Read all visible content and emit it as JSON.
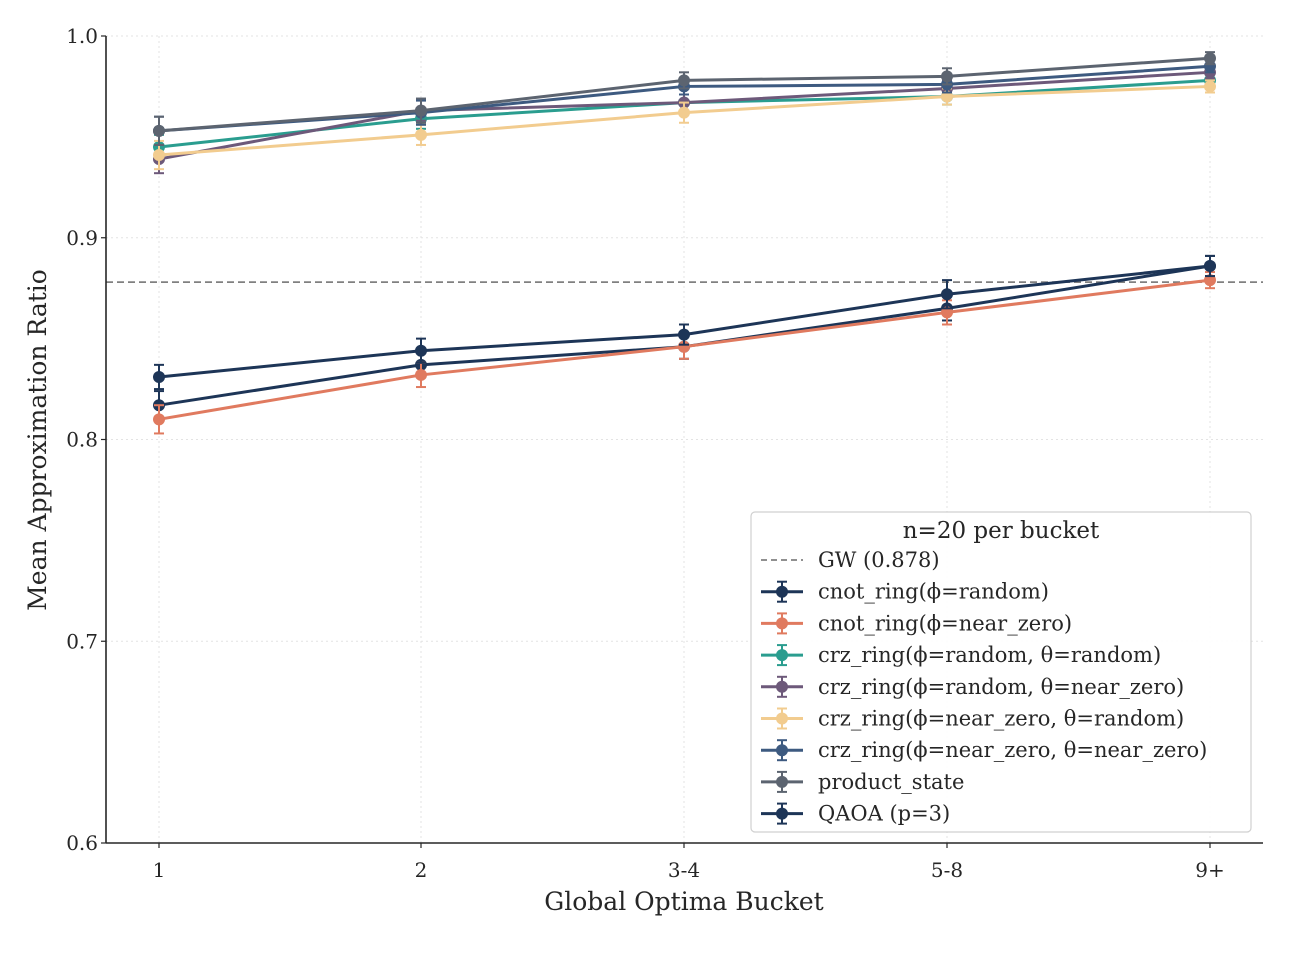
{
  "chart_data": {
    "type": "line",
    "categories": [
      "1",
      "2",
      "3-4",
      "5-8",
      "9+"
    ],
    "xlabel": "Global Optima Bucket",
    "ylabel": "Mean Approximation Ratio",
    "ylim": [
      0.6,
      1.0
    ],
    "yticks": [
      "0.6",
      "0.7",
      "0.8",
      "0.9",
      "1.0"
    ],
    "grid": true,
    "legend": {
      "title": "n=20 per bucket",
      "placement": "lower-right"
    },
    "reference_line": {
      "label": "GW (0.878)",
      "value": 0.878,
      "color": "#808080",
      "style": "dashed"
    },
    "series": [
      {
        "name": "cnot_ring(ϕ=random)",
        "color": "#1d3557",
        "values": [
          0.817,
          0.837,
          0.846,
          0.865,
          0.886
        ],
        "errors": [
          0.007,
          0.006,
          0.006,
          0.006,
          0.005
        ]
      },
      {
        "name": "cnot_ring(ϕ=near_zero)",
        "color": "#e07a5f",
        "values": [
          0.81,
          0.832,
          0.846,
          0.863,
          0.879
        ],
        "errors": [
          0.007,
          0.006,
          0.006,
          0.006,
          0.004
        ]
      },
      {
        "name": "crz_ring(ϕ=random, θ=random)",
        "color": "#2a9d8f",
        "values": [
          0.945,
          0.959,
          0.967,
          0.97,
          0.978
        ],
        "errors": [
          0.006,
          0.005,
          0.004,
          0.004,
          0.003
        ]
      },
      {
        "name": "crz_ring(ϕ=random, θ=near_zero)",
        "color": "#6d597a",
        "values": [
          0.939,
          0.963,
          0.967,
          0.974,
          0.982
        ],
        "errors": [
          0.007,
          0.005,
          0.004,
          0.004,
          0.003
        ]
      },
      {
        "name": "crz_ring(ϕ=near_zero, θ=random)",
        "color": "#f2cc8f",
        "values": [
          0.941,
          0.951,
          0.962,
          0.97,
          0.975
        ],
        "errors": [
          0.007,
          0.005,
          0.005,
          0.004,
          0.003
        ]
      },
      {
        "name": "crz_ring(ϕ=near_zero, θ=near_zero)",
        "color": "#3d5a80",
        "values": [
          0.953,
          0.962,
          0.975,
          0.976,
          0.985
        ],
        "errors": [
          0.007,
          0.006,
          0.004,
          0.004,
          0.003
        ]
      },
      {
        "name": "product_state",
        "color": "#5c6470",
        "values": [
          0.953,
          0.963,
          0.978,
          0.98,
          0.989
        ],
        "errors": [
          0.007,
          0.006,
          0.004,
          0.004,
          0.003
        ]
      },
      {
        "name": "QAOA (p=3)",
        "color": "#1d3557",
        "values": [
          0.831,
          0.844,
          0.852,
          0.872,
          0.886
        ],
        "errors": [
          0.006,
          0.006,
          0.005,
          0.007,
          0.005
        ]
      }
    ]
  }
}
